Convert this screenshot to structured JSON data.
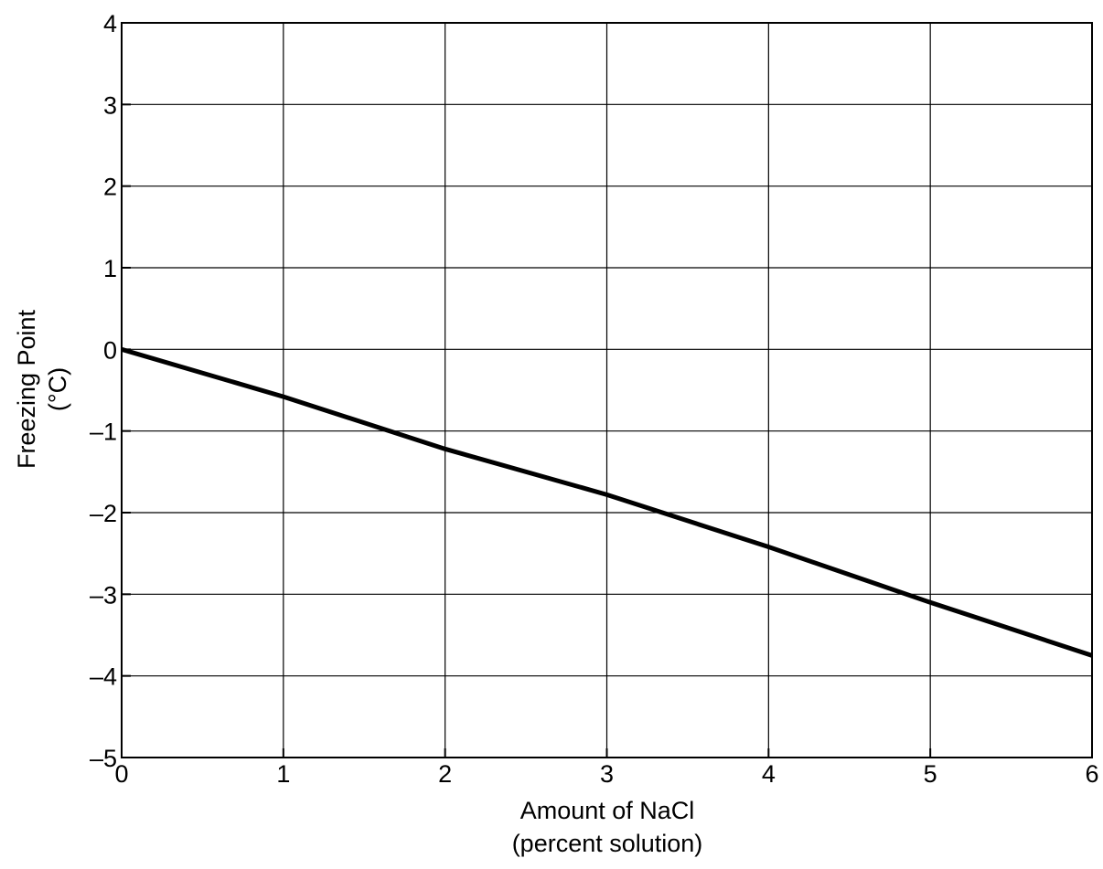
{
  "chart_data": {
    "type": "line",
    "title": "",
    "xlabel": [
      "Amount of NaCl",
      "(percent solution)"
    ],
    "ylabel": [
      "Freezing Point",
      "(°C)"
    ],
    "xlim": [
      0,
      6
    ],
    "ylim": [
      -5,
      4
    ],
    "x_ticks": [
      0,
      1,
      2,
      3,
      4,
      5,
      6
    ],
    "y_ticks": [
      -5,
      -4,
      -3,
      -2,
      -1,
      0,
      1,
      2,
      3,
      4
    ],
    "x_tick_labels": [
      "0",
      "1",
      "2",
      "3",
      "4",
      "5",
      "6"
    ],
    "y_tick_labels": [
      "–5",
      "–4",
      "–3",
      "–2",
      "–1",
      "0",
      "1",
      "2",
      "3",
      "4"
    ],
    "grid": true,
    "series": [
      {
        "x": [
          0,
          1,
          2,
          3,
          4,
          5,
          6
        ],
        "y": [
          0,
          -0.58,
          -1.22,
          -1.78,
          -2.42,
          -3.1,
          -3.75
        ],
        "color": "#000000"
      }
    ]
  }
}
